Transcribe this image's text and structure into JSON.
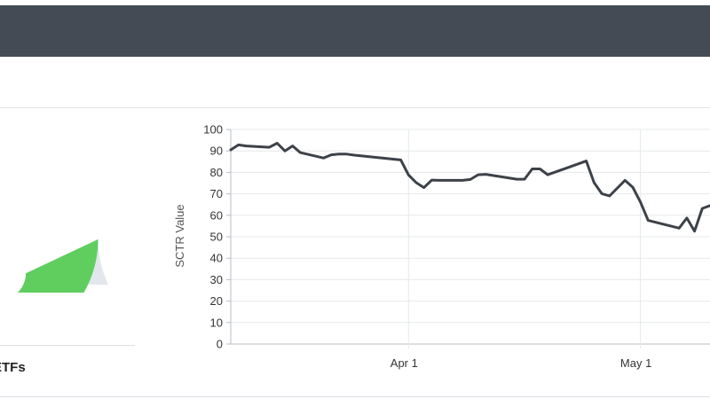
{
  "header": {
    "title": ""
  },
  "gauge": {
    "value_text": "",
    "label": "ETFs",
    "fill_fraction": 0.86,
    "colors": {
      "track": "#e1e7ec",
      "fill": "#5fce5f"
    }
  },
  "chart_data": {
    "type": "line",
    "title": "",
    "xlabel": "",
    "ylabel": "SCTR Value",
    "ylim": [
      0,
      100
    ],
    "y_ticks": [
      0,
      10,
      20,
      30,
      40,
      50,
      60,
      70,
      80,
      90,
      100
    ],
    "x_ticks": [
      {
        "label": "Apr 1",
        "date": "2024-04-01"
      },
      {
        "label": "May 1",
        "date": "2024-05-01"
      }
    ],
    "xlim": [
      "2024-03-09",
      "2024-05-10"
    ],
    "grid": true,
    "line_color": "#3d4249",
    "series": [
      {
        "x": [
          "2024-03-09",
          "2024-03-10",
          "2024-03-11",
          "2024-03-14",
          "2024-03-15",
          "2024-03-16",
          "2024-03-17",
          "2024-03-18",
          "2024-03-21",
          "2024-03-22",
          "2024-03-23",
          "2024-03-24",
          "2024-03-25",
          "2024-03-31",
          "2024-04-01",
          "2024-04-02",
          "2024-04-03",
          "2024-04-04",
          "2024-04-05",
          "2024-04-08",
          "2024-04-09",
          "2024-04-10",
          "2024-04-11",
          "2024-04-15",
          "2024-04-16",
          "2024-04-17",
          "2024-04-18",
          "2024-04-19",
          "2024-04-24",
          "2024-04-25",
          "2024-04-26",
          "2024-04-27",
          "2024-04-29",
          "2024-04-30",
          "2024-05-01",
          "2024-05-02",
          "2024-05-06",
          "2024-05-07",
          "2024-05-08",
          "2024-05-09",
          "2024-05-10"
        ],
        "y": [
          90.5,
          92.8,
          92.3,
          91.7,
          93.6,
          90.0,
          92.3,
          89.2,
          86.7,
          88.2,
          88.5,
          88.5,
          88.0,
          85.8,
          78.8,
          75.2,
          72.9,
          76.4,
          76.3,
          76.3,
          76.7,
          78.9,
          79.1,
          76.8,
          76.8,
          81.6,
          81.6,
          78.9,
          85.3,
          75.2,
          70.1,
          69.0,
          76.3,
          73.1,
          66.2,
          57.6,
          54.0,
          58.7,
          52.6,
          63.2,
          64.5
        ]
      }
    ]
  }
}
